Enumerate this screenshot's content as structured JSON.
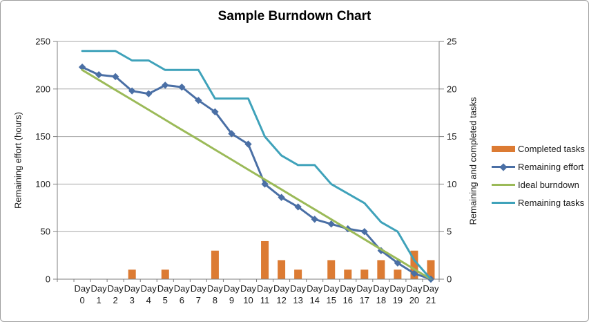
{
  "chart_data": {
    "type": "combo-bar-line",
    "title": "Sample Burndown Chart",
    "categories": [
      "Day 0",
      "Day 1",
      "Day 2",
      "Day 3",
      "Day 4",
      "Day 5",
      "Day 6",
      "Day 7",
      "Day 8",
      "Day 9",
      "Day 10",
      "Day 11",
      "Day 12",
      "Day 13",
      "Day 14",
      "Day 15",
      "Day 16",
      "Day 17",
      "Day 18",
      "Day 19",
      "Day 20",
      "Day 21"
    ],
    "series": [
      {
        "name": "Completed tasks",
        "type": "bar",
        "axis": "right",
        "color": "#dc7b33",
        "values": [
          0,
          0,
          0,
          1,
          0,
          1,
          0,
          0,
          3,
          0,
          0,
          4,
          2,
          1,
          0,
          2,
          1,
          1,
          2,
          1,
          3,
          2
        ]
      },
      {
        "name": "Remaining effort",
        "type": "line",
        "marker": "diamond",
        "axis": "left",
        "color": "#4a6fa5",
        "values": [
          223,
          215,
          213,
          198,
          195,
          204,
          202,
          188,
          176,
          153,
          142,
          100,
          86,
          76,
          63,
          58,
          53,
          50,
          30,
          17,
          6,
          0
        ]
      },
      {
        "name": "Ideal burndown",
        "type": "line",
        "marker": "none",
        "axis": "left",
        "color": "#9bba58",
        "values": [
          220,
          209.5,
          199,
          188.6,
          178.1,
          167.6,
          157.1,
          146.7,
          136.2,
          125.7,
          115.2,
          104.8,
          94.3,
          83.8,
          73.3,
          62.9,
          52.4,
          41.9,
          31.4,
          21,
          10.5,
          0
        ]
      },
      {
        "name": "Remaining tasks",
        "type": "line",
        "marker": "none",
        "axis": "right",
        "color": "#3fa2ba",
        "values": [
          24,
          24,
          24,
          23,
          23,
          22,
          22,
          22,
          19,
          19,
          19,
          15,
          13,
          12,
          12,
          10,
          9,
          8,
          6,
          5,
          2,
          0
        ]
      }
    ],
    "left_axis": {
      "title": "Remaining effort (hours)",
      "min": 0,
      "max": 250,
      "ticks": [
        0,
        50,
        100,
        150,
        200,
        250
      ]
    },
    "right_axis": {
      "title": "Remaining and completed tasks",
      "min": 0,
      "max": 25,
      "ticks": [
        0,
        5,
        10,
        15,
        20,
        25
      ]
    },
    "legend": {
      "position": "right",
      "entries": [
        "Completed tasks",
        "Remaining effort",
        "Ideal burndown",
        "Remaining tasks"
      ]
    },
    "style": {
      "gridline_color": "#a6a6a6",
      "axis_color": "#7f7f7f",
      "background": "#ffffff",
      "border_color": "#9d9d9d",
      "text_color": "#1a1a1a"
    }
  }
}
